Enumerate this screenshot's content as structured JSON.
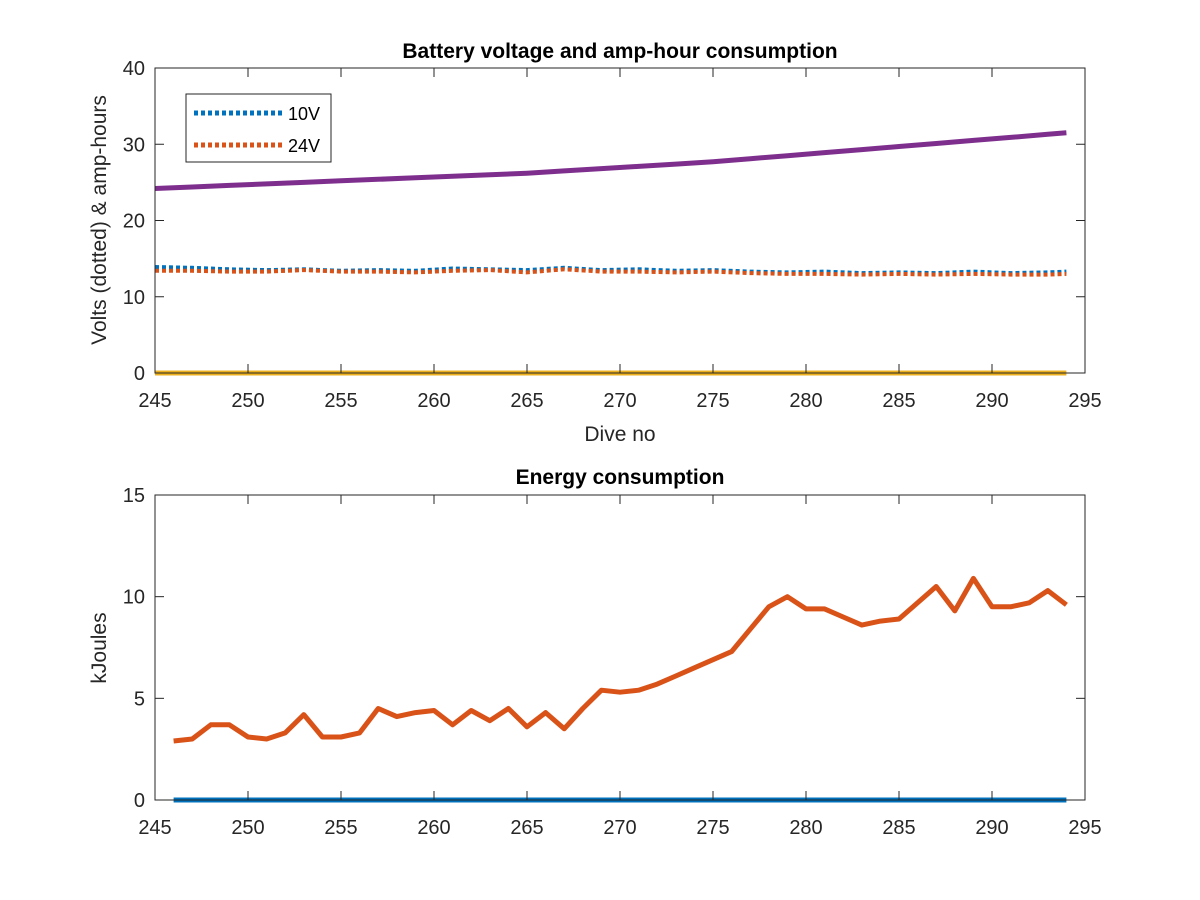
{
  "chart_data": [
    {
      "type": "line",
      "title": "Battery voltage and amp-hour consumption",
      "xlabel": "Dive no",
      "ylabel": "Volts (dotted) & amp-hours",
      "xlim": [
        245,
        295
      ],
      "ylim": [
        0,
        40
      ],
      "xticks": [
        245,
        250,
        255,
        260,
        265,
        270,
        275,
        280,
        285,
        290,
        295
      ],
      "yticks": [
        0,
        10,
        20,
        30,
        40
      ],
      "grid": false,
      "legend": {
        "placement": "top-left",
        "entries": [
          "10V",
          "24V"
        ]
      },
      "x": [
        245,
        247,
        249,
        251,
        253,
        255,
        257,
        259,
        261,
        263,
        265,
        267,
        269,
        271,
        273,
        275,
        277,
        279,
        281,
        283,
        285,
        287,
        289,
        291,
        293,
        294
      ],
      "series": [
        {
          "name": "10V",
          "style": "dotted",
          "color": "#0072BD",
          "values": [
            13.9,
            13.8,
            13.6,
            13.5,
            13.6,
            13.4,
            13.5,
            13.4,
            13.7,
            13.6,
            13.5,
            13.8,
            13.5,
            13.6,
            13.4,
            13.5,
            13.3,
            13.2,
            13.3,
            13.1,
            13.2,
            13.1,
            13.3,
            13.1,
            13.2,
            13.3
          ]
        },
        {
          "name": "24V",
          "style": "dotted",
          "color": "#D95319",
          "values": [
            13.4,
            13.4,
            13.3,
            13.3,
            13.5,
            13.3,
            13.3,
            13.2,
            13.4,
            13.5,
            13.2,
            13.6,
            13.3,
            13.3,
            13.2,
            13.3,
            13.1,
            13.0,
            13.0,
            12.9,
            13.0,
            12.9,
            13.0,
            12.9,
            12.9,
            13.0
          ]
        },
        {
          "style": "solid",
          "color": "#7E2F8E",
          "values": [
            24.2,
            24.4,
            24.6,
            24.8,
            25.0,
            25.2,
            25.4,
            25.6,
            25.8,
            26.0,
            26.2,
            26.5,
            26.8,
            27.1,
            27.4,
            27.7,
            28.1,
            28.5,
            28.9,
            29.3,
            29.7,
            30.1,
            30.5,
            30.9,
            31.3,
            31.5
          ]
        },
        {
          "style": "solid",
          "color": "#EDB120",
          "values": [
            0,
            0,
            0,
            0,
            0,
            0,
            0,
            0,
            0,
            0,
            0,
            0,
            0,
            0,
            0,
            0,
            0,
            0,
            0,
            0,
            0,
            0,
            0,
            0,
            0,
            0
          ]
        }
      ]
    },
    {
      "type": "line",
      "title": "Energy consumption",
      "xlabel": "",
      "ylabel": "kJoules",
      "xlim": [
        245,
        295
      ],
      "ylim": [
        0,
        15
      ],
      "xticks": [
        245,
        250,
        255,
        260,
        265,
        270,
        275,
        280,
        285,
        290,
        295
      ],
      "yticks": [
        0,
        5,
        10,
        15
      ],
      "grid": false,
      "x": [
        246,
        247,
        248,
        249,
        250,
        251,
        252,
        253,
        254,
        255,
        256,
        257,
        258,
        259,
        260,
        261,
        262,
        263,
        264,
        265,
        266,
        267,
        268,
        269,
        270,
        271,
        272,
        273,
        274,
        275,
        276,
        277,
        278,
        279,
        280,
        281,
        282,
        283,
        284,
        285,
        286,
        287,
        288,
        289,
        290,
        291,
        292,
        293,
        294
      ],
      "series": [
        {
          "style": "solid",
          "color": "#D95319",
          "values": [
            2.9,
            3.0,
            3.7,
            3.7,
            3.1,
            3.0,
            3.3,
            4.2,
            3.1,
            3.1,
            3.3,
            4.5,
            4.1,
            4.3,
            4.4,
            3.7,
            4.4,
            3.9,
            4.5,
            3.6,
            4.3,
            3.5,
            4.5,
            5.4,
            5.3,
            5.4,
            5.7,
            6.1,
            6.5,
            6.9,
            7.3,
            8.4,
            9.5,
            10.0,
            9.4,
            9.4,
            9.0,
            8.6,
            8.8,
            8.9,
            9.7,
            10.5,
            9.3,
            10.9,
            9.5,
            9.5,
            9.7,
            10.3,
            9.6
          ]
        },
        {
          "style": "solid",
          "color": "#0072BD",
          "values": [
            0,
            0,
            0,
            0,
            0,
            0,
            0,
            0,
            0,
            0,
            0,
            0,
            0,
            0,
            0,
            0,
            0,
            0,
            0,
            0,
            0,
            0,
            0,
            0,
            0,
            0,
            0,
            0,
            0,
            0,
            0,
            0,
            0,
            0,
            0,
            0,
            0,
            0,
            0,
            0,
            0,
            0,
            0,
            0,
            0,
            0,
            0,
            0,
            0
          ]
        }
      ]
    }
  ]
}
